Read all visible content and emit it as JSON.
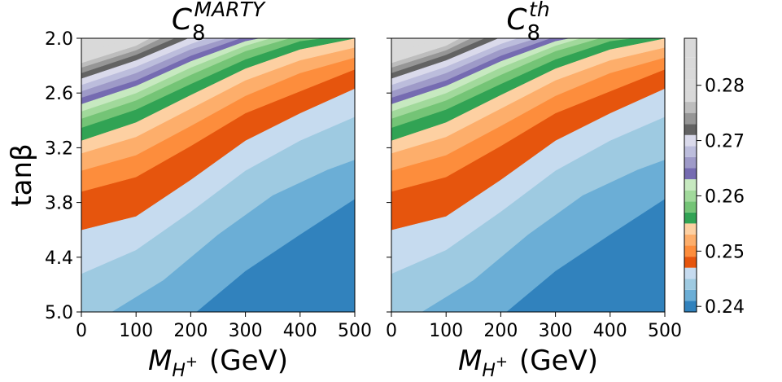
{
  "chart_data": {
    "type": "contour",
    "panels": [
      {
        "title_main": "C",
        "title_sub": "8",
        "title_sup": "MARTY",
        "xlabel_main": "M",
        "xlabel_sub": "H",
        "xlabel_sup": "+",
        "xlabel_unit": "(GeV)",
        "ylabel": "tanβ"
      },
      {
        "title_main": "C",
        "title_sub": "8",
        "title_sup": "th",
        "xlabel_main": "M",
        "xlabel_sub": "H",
        "xlabel_sup": "+",
        "xlabel_unit": "(GeV)",
        "ylabel": ""
      }
    ],
    "x": {
      "range": [
        0,
        500
      ],
      "ticks": [
        0,
        100,
        200,
        300,
        400,
        500
      ],
      "tick_labels": [
        "0",
        "100",
        "200",
        "300",
        "400",
        "500"
      ]
    },
    "y": {
      "range": [
        2.0,
        5.0
      ],
      "inverted": true,
      "ticks": [
        2.0,
        2.6,
        3.2,
        3.8,
        4.4,
        5.0
      ],
      "tick_labels": [
        "2.0",
        "2.6",
        "3.2",
        "3.8",
        "4.4",
        "5.0"
      ]
    },
    "levels": [
      0.239,
      0.241,
      0.243,
      0.245,
      0.247,
      0.249,
      0.251,
      0.253,
      0.255,
      0.257,
      0.259,
      0.261,
      0.263,
      0.265,
      0.267,
      0.269,
      0.271,
      0.273,
      0.275,
      0.277,
      0.279,
      0.281,
      0.283,
      0.285,
      0.2885
    ],
    "colors": [
      "#3182bd",
      "#6baed6",
      "#9ecae1",
      "#c6dbef",
      "#e6550d",
      "#fd8d3c",
      "#fdae6b",
      "#fdd0a2",
      "#31a354",
      "#74c476",
      "#a1d99b",
      "#c7e9c0",
      "#756bb1",
      "#9e9ac8",
      "#bcbddc",
      "#dadaeb",
      "#636363",
      "#969696",
      "#bdbdbd",
      "#d9d9d9",
      "#d9d9d9",
      "#d9d9d9",
      "#d9d9d9",
      "#d9d9d9"
    ],
    "colorbar": {
      "ticks": [
        0.24,
        0.25,
        0.26,
        0.27,
        0.28
      ],
      "tick_labels": [
        "0.24",
        "0.25",
        "0.26",
        "0.27",
        "0.28"
      ]
    },
    "contour_lines": [
      {
        "level": 0.241,
        "points": [
          [
            210,
            5.0
          ],
          [
            300,
            4.55
          ],
          [
            400,
            4.15
          ],
          [
            500,
            3.76
          ]
        ]
      },
      {
        "level": 0.243,
        "points": [
          [
            55,
            5.0
          ],
          [
            150,
            4.65
          ],
          [
            250,
            4.15
          ],
          [
            350,
            3.72
          ],
          [
            450,
            3.44
          ],
          [
            500,
            3.33
          ]
        ]
      },
      {
        "level": 0.245,
        "points": [
          [
            0,
            4.58
          ],
          [
            100,
            4.32
          ],
          [
            200,
            3.9
          ],
          [
            300,
            3.45
          ],
          [
            400,
            3.12
          ],
          [
            500,
            2.86
          ]
        ]
      },
      {
        "level": 0.247,
        "points": [
          [
            0,
            4.1
          ],
          [
            100,
            3.95
          ],
          [
            200,
            3.55
          ],
          [
            300,
            3.12
          ],
          [
            400,
            2.82
          ],
          [
            500,
            2.55
          ]
        ]
      },
      {
        "level": 0.249,
        "points": [
          [
            0,
            3.68
          ],
          [
            100,
            3.52
          ],
          [
            200,
            3.18
          ],
          [
            300,
            2.82
          ],
          [
            400,
            2.58
          ],
          [
            500,
            2.34
          ]
        ]
      },
      {
        "level": 0.251,
        "points": [
          [
            0,
            3.45
          ],
          [
            100,
            3.28
          ],
          [
            200,
            2.96
          ],
          [
            300,
            2.63
          ],
          [
            400,
            2.38
          ],
          [
            500,
            2.21
          ]
        ]
      },
      {
        "level": 0.253,
        "points": [
          [
            0,
            3.26
          ],
          [
            100,
            3.08
          ],
          [
            200,
            2.77
          ],
          [
            300,
            2.46
          ],
          [
            400,
            2.24
          ],
          [
            500,
            2.1
          ]
        ]
      },
      {
        "level": 0.255,
        "points": [
          [
            0,
            3.12
          ],
          [
            100,
            2.92
          ],
          [
            200,
            2.62
          ],
          [
            300,
            2.33
          ],
          [
            400,
            2.12
          ],
          [
            500,
            2.0
          ]
        ]
      },
      {
        "level": 0.257,
        "points": [
          [
            0,
            2.98
          ],
          [
            100,
            2.78
          ],
          [
            200,
            2.5
          ],
          [
            300,
            2.23
          ],
          [
            400,
            2.03
          ],
          [
            440,
            2.0
          ]
        ]
      },
      {
        "level": 0.259,
        "points": [
          [
            0,
            2.88
          ],
          [
            100,
            2.68
          ],
          [
            200,
            2.4
          ],
          [
            300,
            2.14
          ],
          [
            380,
            2.0
          ]
        ]
      },
      {
        "level": 0.261,
        "points": [
          [
            0,
            2.8
          ],
          [
            100,
            2.6
          ],
          [
            200,
            2.32
          ],
          [
            300,
            2.08
          ],
          [
            345,
            2.0
          ]
        ]
      },
      {
        "level": 0.263,
        "points": [
          [
            0,
            2.72
          ],
          [
            100,
            2.52
          ],
          [
            200,
            2.25
          ],
          [
            300,
            2.03
          ],
          [
            325,
            2.0
          ]
        ]
      },
      {
        "level": 0.265,
        "points": [
          [
            0,
            2.65
          ],
          [
            100,
            2.46
          ],
          [
            200,
            2.19
          ],
          [
            290,
            2.0
          ]
        ]
      },
      {
        "level": 0.267,
        "points": [
          [
            0,
            2.58
          ],
          [
            100,
            2.38
          ],
          [
            200,
            2.12
          ],
          [
            265,
            2.0
          ]
        ]
      },
      {
        "level": 0.269,
        "points": [
          [
            0,
            2.51
          ],
          [
            100,
            2.31
          ],
          [
            200,
            2.06
          ],
          [
            230,
            2.0
          ]
        ]
      },
      {
        "level": 0.271,
        "points": [
          [
            0,
            2.44
          ],
          [
            100,
            2.24
          ],
          [
            195,
            2.0
          ]
        ]
      },
      {
        "level": 0.273,
        "points": [
          [
            0,
            2.38
          ],
          [
            100,
            2.18
          ],
          [
            170,
            2.0
          ]
        ]
      },
      {
        "level": 0.275,
        "points": [
          [
            0,
            2.32
          ],
          [
            100,
            2.13
          ],
          [
            145,
            2.0
          ]
        ]
      },
      {
        "level": 0.277,
        "points": [
          [
            0,
            2.27
          ],
          [
            100,
            2.08
          ],
          [
            125,
            2.0
          ]
        ]
      },
      {
        "level": 0.279,
        "points": [
          [
            0,
            2.22
          ],
          [
            100,
            2.03
          ],
          [
            110,
            2.0
          ]
        ]
      },
      {
        "level": 0.281,
        "points": [
          [
            0,
            2.17
          ],
          [
            90,
            2.0
          ]
        ]
      },
      {
        "level": 0.283,
        "points": [
          [
            0,
            2.12
          ],
          [
            65,
            2.0
          ]
        ]
      },
      {
        "level": 0.285,
        "points": [
          [
            0,
            2.07
          ],
          [
            40,
            2.0
          ]
        ]
      }
    ]
  }
}
